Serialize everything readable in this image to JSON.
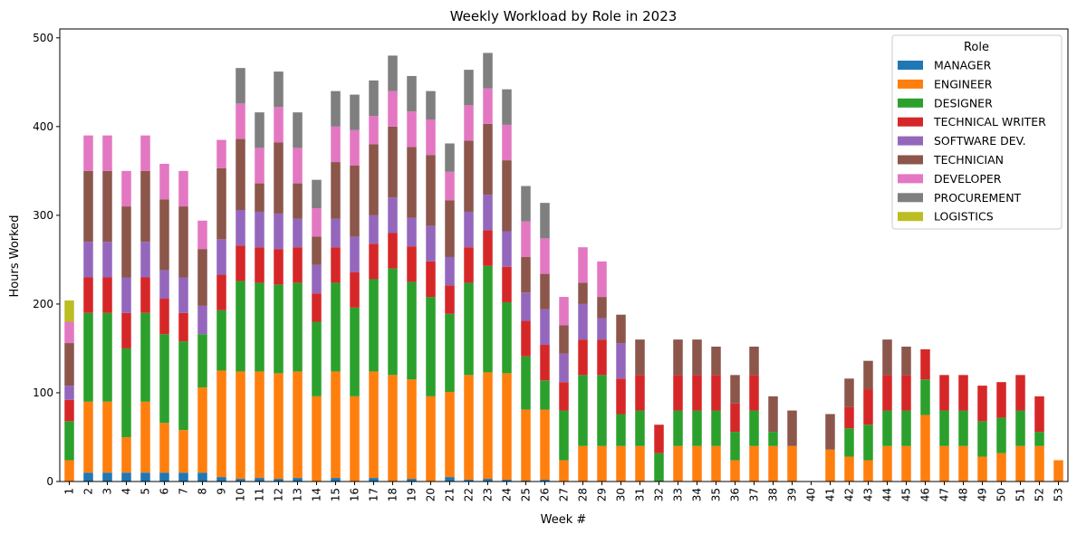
{
  "chart_data": {
    "type": "bar",
    "stacked": true,
    "title": "Weekly Workload by Role in 2023",
    "xlabel": "Week #",
    "ylabel": "Hours Worked",
    "ylim": [
      0,
      510
    ],
    "yticks": [
      0,
      100,
      200,
      300,
      400,
      500
    ],
    "legend_title": "Role",
    "legend_position": "top-right",
    "grid": false,
    "categories": [
      "1",
      "2",
      "3",
      "4",
      "5",
      "6",
      "7",
      "8",
      "9",
      "10",
      "11",
      "12",
      "13",
      "14",
      "15",
      "16",
      "17",
      "18",
      "19",
      "20",
      "21",
      "22",
      "23",
      "24",
      "25",
      "26",
      "27",
      "28",
      "29",
      "30",
      "31",
      "32",
      "33",
      "34",
      "35",
      "36",
      "37",
      "38",
      "39",
      "40",
      "41",
      "42",
      "43",
      "44",
      "45",
      "46",
      "47",
      "48",
      "49",
      "50",
      "51",
      "52",
      "53"
    ],
    "series": [
      {
        "name": "MANAGER",
        "color": "#1f77b4",
        "values": [
          0,
          10,
          10,
          10,
          10,
          10,
          10,
          10,
          5,
          3,
          4,
          3,
          4,
          0,
          4,
          0,
          4,
          0,
          3,
          0,
          5,
          2,
          3,
          2,
          1,
          2,
          0,
          0,
          0,
          0,
          0,
          0,
          0,
          0,
          0,
          0,
          0,
          0,
          0,
          0,
          0,
          0,
          0,
          0,
          0,
          0,
          0,
          0,
          0,
          0,
          0,
          0,
          0
        ]
      },
      {
        "name": "ENGINEER",
        "color": "#ff7f0e",
        "values": [
          24,
          80,
          80,
          40,
          80,
          56,
          48,
          96,
          120,
          121,
          120,
          119,
          120,
          96,
          120,
          96,
          120,
          120,
          112,
          96,
          96,
          118,
          120,
          120,
          80,
          79,
          24,
          40,
          40,
          40,
          40,
          0,
          40,
          40,
          40,
          24,
          40,
          40,
          40,
          0,
          36,
          28,
          24,
          40,
          40,
          75,
          40,
          40,
          28,
          32,
          40,
          40,
          24
        ]
      },
      {
        "name": "DESIGNER",
        "color": "#2ca02c",
        "values": [
          44,
          100,
          100,
          100,
          100,
          100,
          100,
          60,
          68,
          102,
          100,
          100,
          100,
          84,
          100,
          100,
          104,
          120,
          110,
          112,
          88,
          104,
          120,
          80,
          60,
          33,
          56,
          80,
          80,
          36,
          40,
          32,
          40,
          40,
          40,
          32,
          40,
          16,
          0,
          0,
          0,
          32,
          40,
          40,
          40,
          40,
          40,
          40,
          40,
          40,
          40,
          16,
          0
        ]
      },
      {
        "name": "TECHNICAL WRITER",
        "color": "#d62728",
        "values": [
          24,
          40,
          40,
          40,
          40,
          40,
          32,
          0,
          40,
          40,
          40,
          40,
          40,
          32,
          40,
          40,
          40,
          40,
          40,
          40,
          32,
          40,
          40,
          40,
          40,
          40,
          32,
          40,
          40,
          40,
          40,
          32,
          40,
          40,
          40,
          32,
          40,
          0,
          0,
          0,
          0,
          24,
          40,
          40,
          40,
          34,
          40,
          40,
          40,
          40,
          40,
          40,
          0
        ]
      },
      {
        "name": "SOFTWARE DEV.",
        "color": "#9467bd",
        "values": [
          16,
          40,
          40,
          40,
          40,
          32,
          40,
          32,
          40,
          40,
          40,
          40,
          32,
          32,
          32,
          40,
          32,
          40,
          32,
          40,
          32,
          40,
          40,
          40,
          32,
          40,
          32,
          40,
          24,
          40,
          0,
          0,
          0,
          0,
          0,
          0,
          0,
          0,
          0,
          0,
          0,
          0,
          0,
          0,
          0,
          0,
          0,
          0,
          0,
          0,
          0,
          0,
          0
        ]
      },
      {
        "name": "TECHNICIAN",
        "color": "#8c564b",
        "values": [
          48,
          80,
          80,
          80,
          80,
          80,
          80,
          64,
          80,
          80,
          32,
          80,
          40,
          32,
          64,
          80,
          80,
          80,
          80,
          80,
          64,
          80,
          80,
          80,
          40,
          40,
          32,
          24,
          24,
          32,
          40,
          0,
          40,
          40,
          32,
          32,
          32,
          40,
          40,
          0,
          40,
          32,
          32,
          40,
          32,
          0,
          0,
          0,
          0,
          0,
          0,
          0,
          0
        ]
      },
      {
        "name": "DEVELOPER",
        "color": "#e377c2",
        "values": [
          24,
          40,
          40,
          40,
          40,
          40,
          40,
          32,
          32,
          40,
          40,
          40,
          40,
          32,
          40,
          40,
          32,
          40,
          40,
          40,
          32,
          40,
          40,
          40,
          40,
          40,
          32,
          40,
          40,
          0,
          0,
          0,
          0,
          0,
          0,
          0,
          0,
          0,
          0,
          0,
          0,
          0,
          0,
          0,
          0,
          0,
          0,
          0,
          0,
          0,
          0,
          0,
          0
        ]
      },
      {
        "name": "PROCUREMENT",
        "color": "#7f7f7f",
        "values": [
          0,
          0,
          0,
          0,
          0,
          0,
          0,
          0,
          0,
          40,
          40,
          40,
          40,
          32,
          40,
          40,
          40,
          40,
          40,
          32,
          32,
          40,
          40,
          40,
          40,
          40,
          0,
          0,
          0,
          0,
          0,
          0,
          0,
          0,
          0,
          0,
          0,
          0,
          0,
          0,
          0,
          0,
          0,
          0,
          0,
          0,
          0,
          0,
          0,
          0,
          0,
          0,
          0
        ]
      },
      {
        "name": "LOGISTICS",
        "color": "#bcbd22",
        "values": [
          24,
          0,
          0,
          0,
          0,
          0,
          0,
          0,
          0,
          0,
          0,
          0,
          0,
          0,
          0,
          0,
          0,
          0,
          0,
          0,
          0,
          0,
          0,
          0,
          0,
          0,
          0,
          0,
          0,
          0,
          0,
          0,
          0,
          0,
          0,
          0,
          0,
          0,
          0,
          0,
          0,
          0,
          0,
          0,
          0,
          0,
          0,
          0,
          0,
          0,
          0,
          0,
          0
        ]
      }
    ]
  }
}
